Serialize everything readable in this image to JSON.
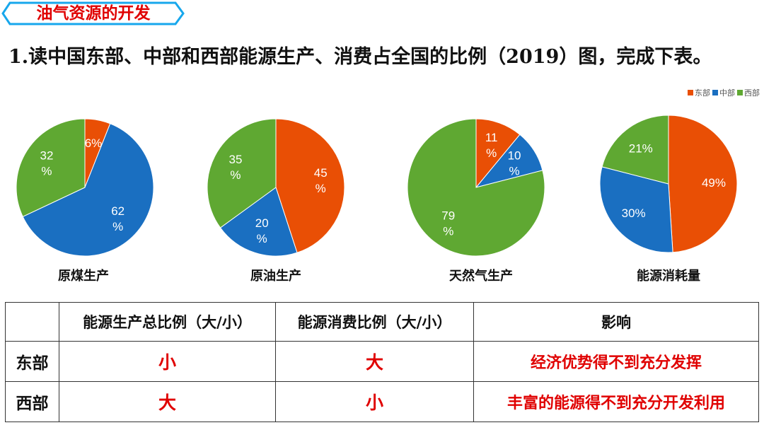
{
  "header": {
    "tag": "油气资源的开发"
  },
  "question": "1.读中国东部、中部和西部能源生产、消费占全国的比例（2019）图，完成下表。",
  "legend": [
    {
      "label": "东部",
      "color": "#e94f05"
    },
    {
      "label": "中部",
      "color": "#1a6fc1"
    },
    {
      "label": "西部",
      "color": "#5fa832"
    }
  ],
  "chart_data": [
    {
      "type": "pie",
      "title": "原煤生产",
      "categories": [
        "东部",
        "中部",
        "西部"
      ],
      "values": [
        6,
        62,
        32
      ],
      "labels": [
        "6%",
        "62\n%",
        "32\n%"
      ]
    },
    {
      "type": "pie",
      "title": "原油生产",
      "categories": [
        "东部",
        "中部",
        "西部"
      ],
      "values": [
        45,
        20,
        35
      ],
      "labels": [
        "45\n%",
        "20\n%",
        "35\n%"
      ]
    },
    {
      "type": "pie",
      "title": "天然气生产",
      "categories": [
        "东部",
        "中部",
        "西部"
      ],
      "values": [
        11,
        10,
        79
      ],
      "labels": [
        "11\n%",
        "10\n%",
        "79\n%"
      ]
    },
    {
      "type": "pie",
      "title": "能源消耗量",
      "categories": [
        "东部",
        "中部",
        "西部"
      ],
      "values": [
        49,
        30,
        21
      ],
      "labels": [
        "49%",
        "30%",
        "21%"
      ]
    }
  ],
  "table": {
    "headers": [
      "",
      "能源生产总比例（大/小）",
      "能源消费比例（大/小）",
      "影响"
    ],
    "rows": [
      {
        "label": "东部",
        "production": "小",
        "consumption": "大",
        "effect": "经济优势得不到充分发挥"
      },
      {
        "label": "西部",
        "production": "大",
        "consumption": "小",
        "effect": "丰富的能源得不到充分开发利用"
      }
    ]
  }
}
